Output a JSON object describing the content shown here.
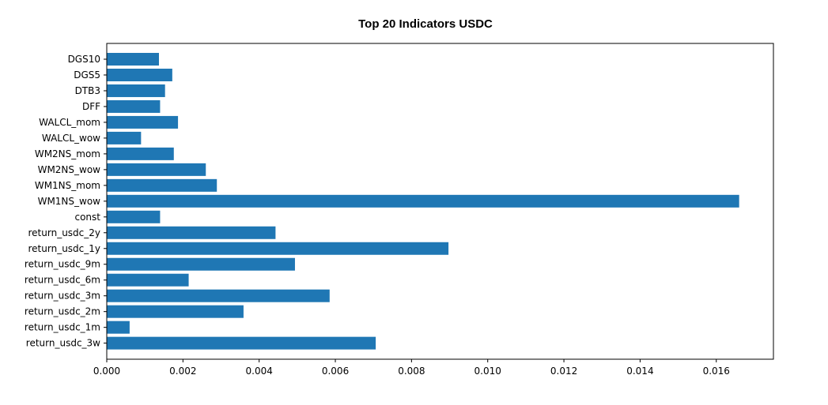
{
  "chart_data": {
    "type": "bar",
    "orientation": "horizontal",
    "title": "Top 20 Indicators USDC",
    "xlabel": "",
    "ylabel": "",
    "xlim": [
      0,
      0.0175
    ],
    "grid": false,
    "bar_color": "#1f77b4",
    "categories": [
      "DGS10",
      "DGS5",
      "DTB3",
      "DFF",
      "WALCL_mom",
      "WALCL_wow",
      "WM2NS_mom",
      "WM2NS_wow",
      "WM1NS_mom",
      "WM1NS_wow",
      "const",
      "return_usdc_2y",
      "return_usdc_1y",
      "return_usdc_9m",
      "return_usdc_6m",
      "return_usdc_3m",
      "return_usdc_2m",
      "return_usdc_1m",
      "return_usdc_3w"
    ],
    "values": [
      0.00137,
      0.00172,
      0.00153,
      0.0014,
      0.00187,
      0.0009,
      0.00176,
      0.0026,
      0.00289,
      0.0166,
      0.0014,
      0.00443,
      0.00897,
      0.00494,
      0.00215,
      0.00585,
      0.00359,
      0.0006,
      0.00706
    ],
    "xticks": [
      "0.000",
      "0.002",
      "0.004",
      "0.006",
      "0.008",
      "0.010",
      "0.012",
      "0.014",
      "0.016"
    ],
    "xtick_values": [
      0,
      0.002,
      0.004,
      0.006,
      0.008,
      0.01,
      0.012,
      0.014,
      0.016
    ]
  }
}
